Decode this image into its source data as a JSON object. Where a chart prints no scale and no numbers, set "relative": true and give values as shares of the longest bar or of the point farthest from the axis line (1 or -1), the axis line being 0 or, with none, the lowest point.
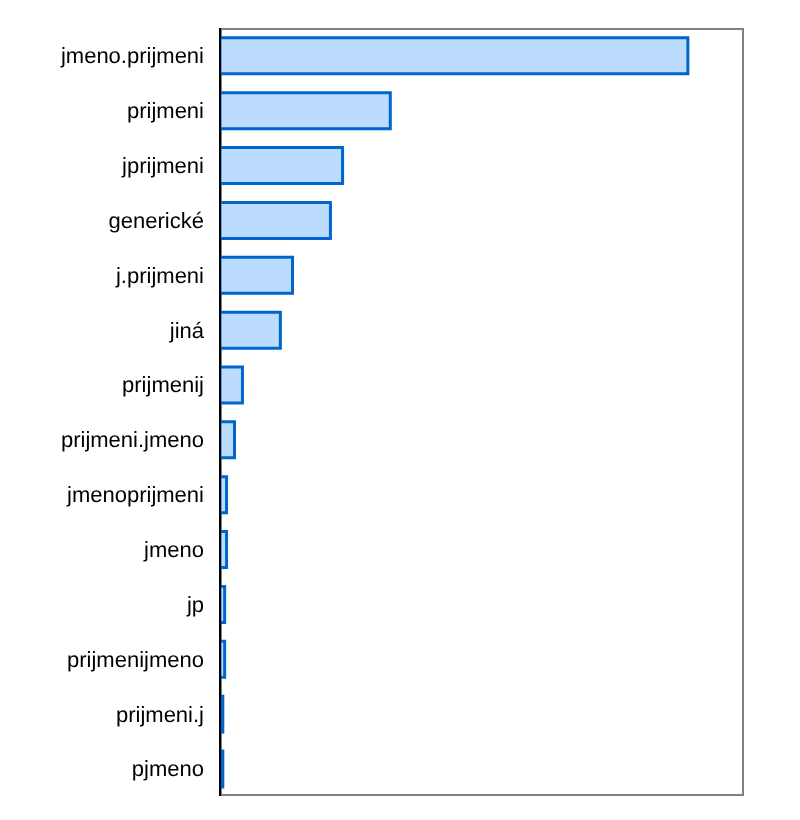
{
  "chart_data": {
    "type": "bar",
    "orientation": "horizontal",
    "relative": true,
    "color": "#bbdcfe",
    "categories": [
      "jmeno.prijmeni",
      "prijmeni",
      "jprijmeni",
      "generické",
      "j.prijmeni",
      "jiná",
      "prijmenij",
      "prijmeni.jmeno",
      "jmenoprijmeni",
      "jmeno",
      "jp",
      "prijmenijmeno",
      "prijmeni.j",
      "pjmeno"
    ],
    "values": [
      1,
      0.364,
      0.262,
      0.236,
      0.155,
      0.129,
      0.048,
      0.031,
      0.014,
      0.014,
      0.01,
      0.01,
      0.006,
      0.006
    ]
  }
}
